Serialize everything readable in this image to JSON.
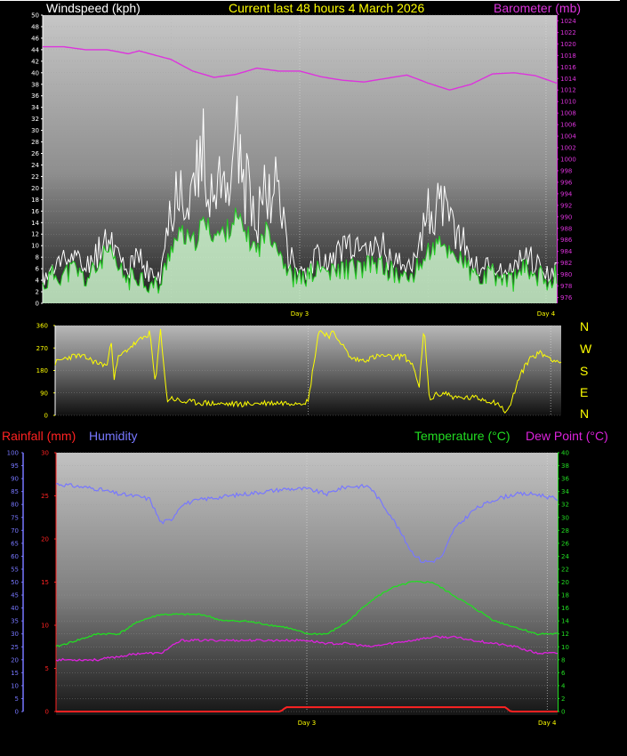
{
  "header": {
    "wind_label": "Windspeed (kph)",
    "title": "Current last 48 hours 4 March 2026",
    "baro_label": "Barometer (mb)",
    "rain_label": "Rainfall (mm)",
    "humidity_label": "Humidity",
    "temp_label": "Temperature (°C)",
    "dew_label": "Dew Point (°C)"
  },
  "compass": [
    "N",
    "W",
    "S",
    "E",
    "N"
  ],
  "colors": {
    "wind_label": "#ffffff",
    "title": "#ffff00",
    "baro": "#dd33dd",
    "gust": "#ffffff",
    "avg_wind": "#22cc22",
    "avg_fill": "#ccf5cc",
    "direction": "#ffff00",
    "rain": "#ff2222",
    "humidity": "#7777ff",
    "temperature": "#22dd22",
    "dew": "#dd22dd"
  },
  "chart_data": [
    {
      "type": "line",
      "name": "wind-baro",
      "x_ticks": [
        "Day 3",
        "Day 4"
      ],
      "left_axis": {
        "label": "Windspeed (kph)",
        "ylim": [
          0,
          50
        ],
        "ticks": [
          0,
          2,
          4,
          6,
          8,
          10,
          12,
          14,
          16,
          18,
          20,
          22,
          24,
          26,
          28,
          30,
          32,
          34,
          36,
          38,
          40,
          42,
          44,
          46,
          48,
          50
        ]
      },
      "right_axis": {
        "label": "Barometer (mb)",
        "ylim": [
          975,
          1025
        ],
        "ticks": [
          976,
          978,
          980,
          982,
          984,
          986,
          988,
          990,
          992,
          994,
          996,
          998,
          1000,
          1002,
          1004,
          1006,
          1008,
          1010,
          1012,
          1014,
          1016,
          1018,
          1020,
          1022,
          1024
        ]
      },
      "series": [
        {
          "name": "Barometer (mb)",
          "x": [
            0,
            2,
            4,
            6,
            8,
            9,
            10,
            12,
            14,
            16,
            18,
            20,
            22,
            24,
            26,
            28,
            30,
            32,
            34,
            36,
            38,
            40,
            42,
            44,
            46,
            48
          ],
          "values": [
            1019.5,
            1019.5,
            1019,
            1019,
            1018.3,
            1018.8,
            1018.3,
            1017.3,
            1015.3,
            1014.2,
            1014.7,
            1015.8,
            1015.3,
            1015.3,
            1014.3,
            1013.7,
            1013.4,
            1014,
            1014.6,
            1013.2,
            1012,
            1013,
            1014.8,
            1015,
            1014.5,
            1013.2
          ]
        },
        {
          "name": "Windspeed (kph)",
          "x": [
            0,
            1,
            2,
            3,
            4,
            5,
            6,
            7,
            8,
            9,
            10,
            11,
            12,
            13,
            14,
            15,
            16,
            17,
            18,
            19,
            20,
            21,
            22,
            23,
            24,
            25,
            26,
            27,
            28,
            29,
            30,
            31,
            32,
            33,
            34,
            35,
            36,
            37,
            38,
            39,
            40,
            41,
            42,
            43,
            44,
            45,
            46,
            47,
            48
          ],
          "values": [
            5,
            6,
            10,
            9,
            7,
            10,
            14,
            10,
            7,
            9,
            6,
            5,
            20,
            26,
            22,
            30,
            22,
            24,
            34,
            23,
            18,
            26,
            22,
            10,
            6,
            8,
            10,
            8,
            12,
            10,
            10,
            12,
            11,
            8,
            7,
            12,
            18,
            20,
            16,
            14,
            8,
            7,
            8,
            6,
            7,
            10,
            8,
            6,
            7
          ]
        },
        {
          "name": "Average wind",
          "x": [
            0,
            1,
            2,
            3,
            4,
            5,
            6,
            7,
            8,
            9,
            10,
            11,
            12,
            13,
            14,
            15,
            16,
            17,
            18,
            19,
            20,
            21,
            22,
            23,
            24,
            25,
            26,
            27,
            28,
            29,
            30,
            31,
            32,
            33,
            34,
            35,
            36,
            37,
            38,
            39,
            40,
            41,
            42,
            43,
            44,
            45,
            46,
            47,
            48
          ],
          "values": [
            3,
            5,
            5,
            6,
            4,
            6,
            9,
            6,
            4,
            5,
            3,
            3,
            10,
            12,
            10,
            14,
            12,
            12,
            15,
            12,
            9,
            13,
            10,
            5,
            4,
            5,
            6,
            5,
            6,
            6,
            6,
            7,
            6,
            5,
            4,
            6,
            9,
            10,
            9,
            8,
            5,
            4,
            5,
            4,
            4,
            6,
            5,
            4,
            5
          ]
        }
      ]
    },
    {
      "type": "line",
      "name": "wind-direction",
      "y_axis": {
        "ylim": [
          0,
          360
        ],
        "ticks": [
          0,
          90,
          180,
          270,
          360
        ]
      },
      "series": [
        {
          "name": "Wind direction",
          "x": [
            0,
            1,
            2,
            3,
            4,
            5,
            5.3,
            5.6,
            6,
            7,
            8,
            9,
            9.5,
            10,
            10.6,
            11,
            12,
            14,
            16,
            18,
            20,
            22,
            24,
            25,
            26,
            26.3,
            27,
            28,
            29,
            30,
            31,
            32,
            33,
            34,
            34.5,
            35,
            35.5,
            36,
            37,
            38,
            40,
            42,
            42.5,
            43,
            44,
            45,
            46,
            47,
            48
          ],
          "values": [
            210,
            230,
            240,
            230,
            210,
            200,
            320,
            150,
            230,
            270,
            300,
            330,
            120,
            350,
            60,
            70,
            55,
            50,
            45,
            45,
            50,
            50,
            55,
            340,
            320,
            330,
            300,
            230,
            220,
            230,
            240,
            230,
            240,
            200,
            100,
            350,
            60,
            80,
            90,
            70,
            70,
            50,
            20,
            20,
            150,
            230,
            250,
            230,
            210
          ]
        }
      ]
    },
    {
      "type": "line",
      "name": "temperature-humidity",
      "x_ticks": [
        "Day 3",
        "Day 4"
      ],
      "left_axis_humidity": {
        "label": "Humidity",
        "ylim": [
          0,
          100
        ],
        "ticks": [
          0,
          5,
          10,
          15,
          20,
          25,
          30,
          35,
          40,
          45,
          50,
          55,
          60,
          65,
          70,
          75,
          80,
          85,
          90,
          95,
          100
        ]
      },
      "left_axis_rain": {
        "label": "Rainfall (mm)",
        "ylim": [
          0,
          30
        ],
        "ticks": [
          0,
          5,
          10,
          15,
          20,
          25,
          30
        ]
      },
      "right_axis": {
        "label": "Temperature (°C)",
        "ylim": [
          0,
          40
        ],
        "ticks": [
          0,
          2,
          4,
          6,
          8,
          10,
          12,
          14,
          16,
          18,
          20,
          22,
          24,
          26,
          28,
          30,
          32,
          34,
          36,
          38,
          40
        ]
      },
      "series": [
        {
          "name": "Humidity",
          "x": [
            0,
            2,
            4,
            6,
            8,
            9,
            10,
            11,
            12,
            14,
            16,
            18,
            20,
            22,
            24,
            26,
            27,
            28,
            30,
            32,
            34,
            35,
            36,
            37,
            38,
            40,
            42,
            44,
            46,
            48
          ],
          "values": [
            88,
            87,
            86,
            84,
            83,
            82,
            73,
            74,
            80,
            82,
            83,
            84,
            85,
            86,
            86,
            84,
            86,
            87,
            87,
            76,
            62,
            58,
            58,
            60,
            70,
            78,
            82,
            84,
            84,
            82
          ]
        },
        {
          "name": "Temperature (°C)",
          "x": [
            0,
            2,
            4,
            6,
            8,
            10,
            12,
            14,
            16,
            18,
            20,
            22,
            24,
            26,
            28,
            30,
            32,
            34,
            36,
            38,
            40,
            42,
            44,
            46,
            48
          ],
          "values": [
            10,
            11,
            12,
            12,
            14,
            15,
            15,
            15,
            14,
            14,
            13.5,
            13,
            12,
            12,
            14,
            17,
            19,
            20,
            20,
            18,
            16,
            14,
            13,
            12,
            12
          ]
        },
        {
          "name": "Dew Point (°C)",
          "x": [
            0,
            2,
            4,
            6,
            8,
            10,
            12,
            14,
            16,
            18,
            20,
            22,
            24,
            26,
            28,
            30,
            32,
            34,
            36,
            38,
            40,
            42,
            44,
            46,
            48
          ],
          "values": [
            8,
            8,
            8,
            8.5,
            9,
            9,
            11,
            11,
            11,
            11,
            11,
            11,
            11,
            10.5,
            10.5,
            10,
            10.5,
            11,
            11.5,
            11.5,
            11,
            10.5,
            10,
            9,
            9
          ]
        },
        {
          "name": "Rainfall (mm)",
          "x": [
            0,
            10,
            21.5,
            22,
            43,
            43.5,
            48
          ],
          "values": [
            0,
            0,
            0,
            0.5,
            0.5,
            0,
            0
          ]
        }
      ]
    }
  ]
}
